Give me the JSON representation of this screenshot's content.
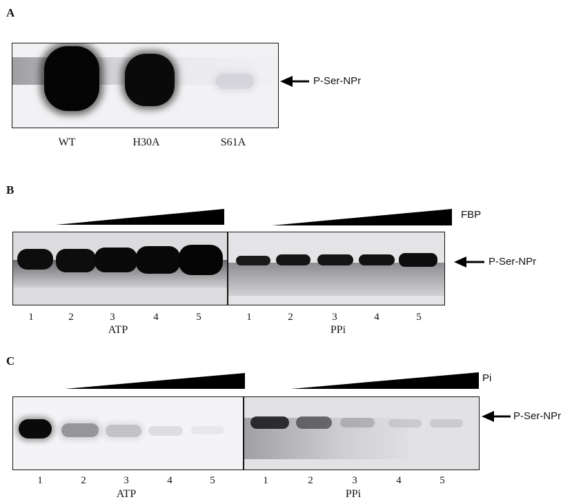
{
  "panel_a": {
    "letter": "A",
    "lanes": [
      "WT",
      "H30A",
      "S61A"
    ],
    "marker": "P-Ser-NPr"
  },
  "panel_b": {
    "letter": "B",
    "gradient_label": "FBP",
    "lanes_left": [
      "1",
      "2",
      "3",
      "4",
      "5"
    ],
    "lanes_right": [
      "1",
      "2",
      "3",
      "4",
      "5"
    ],
    "group_left": "ATP",
    "group_right": "PPi",
    "marker": "P-Ser-NPr"
  },
  "panel_c": {
    "letter": "C",
    "gradient_label": "Pi",
    "lanes_left": [
      "1",
      "2",
      "3",
      "4",
      "5"
    ],
    "lanes_right": [
      "1",
      "2",
      "3",
      "4",
      "5"
    ],
    "group_left": "ATP",
    "group_right": "PPi",
    "marker": "P-Ser-NPr"
  }
}
